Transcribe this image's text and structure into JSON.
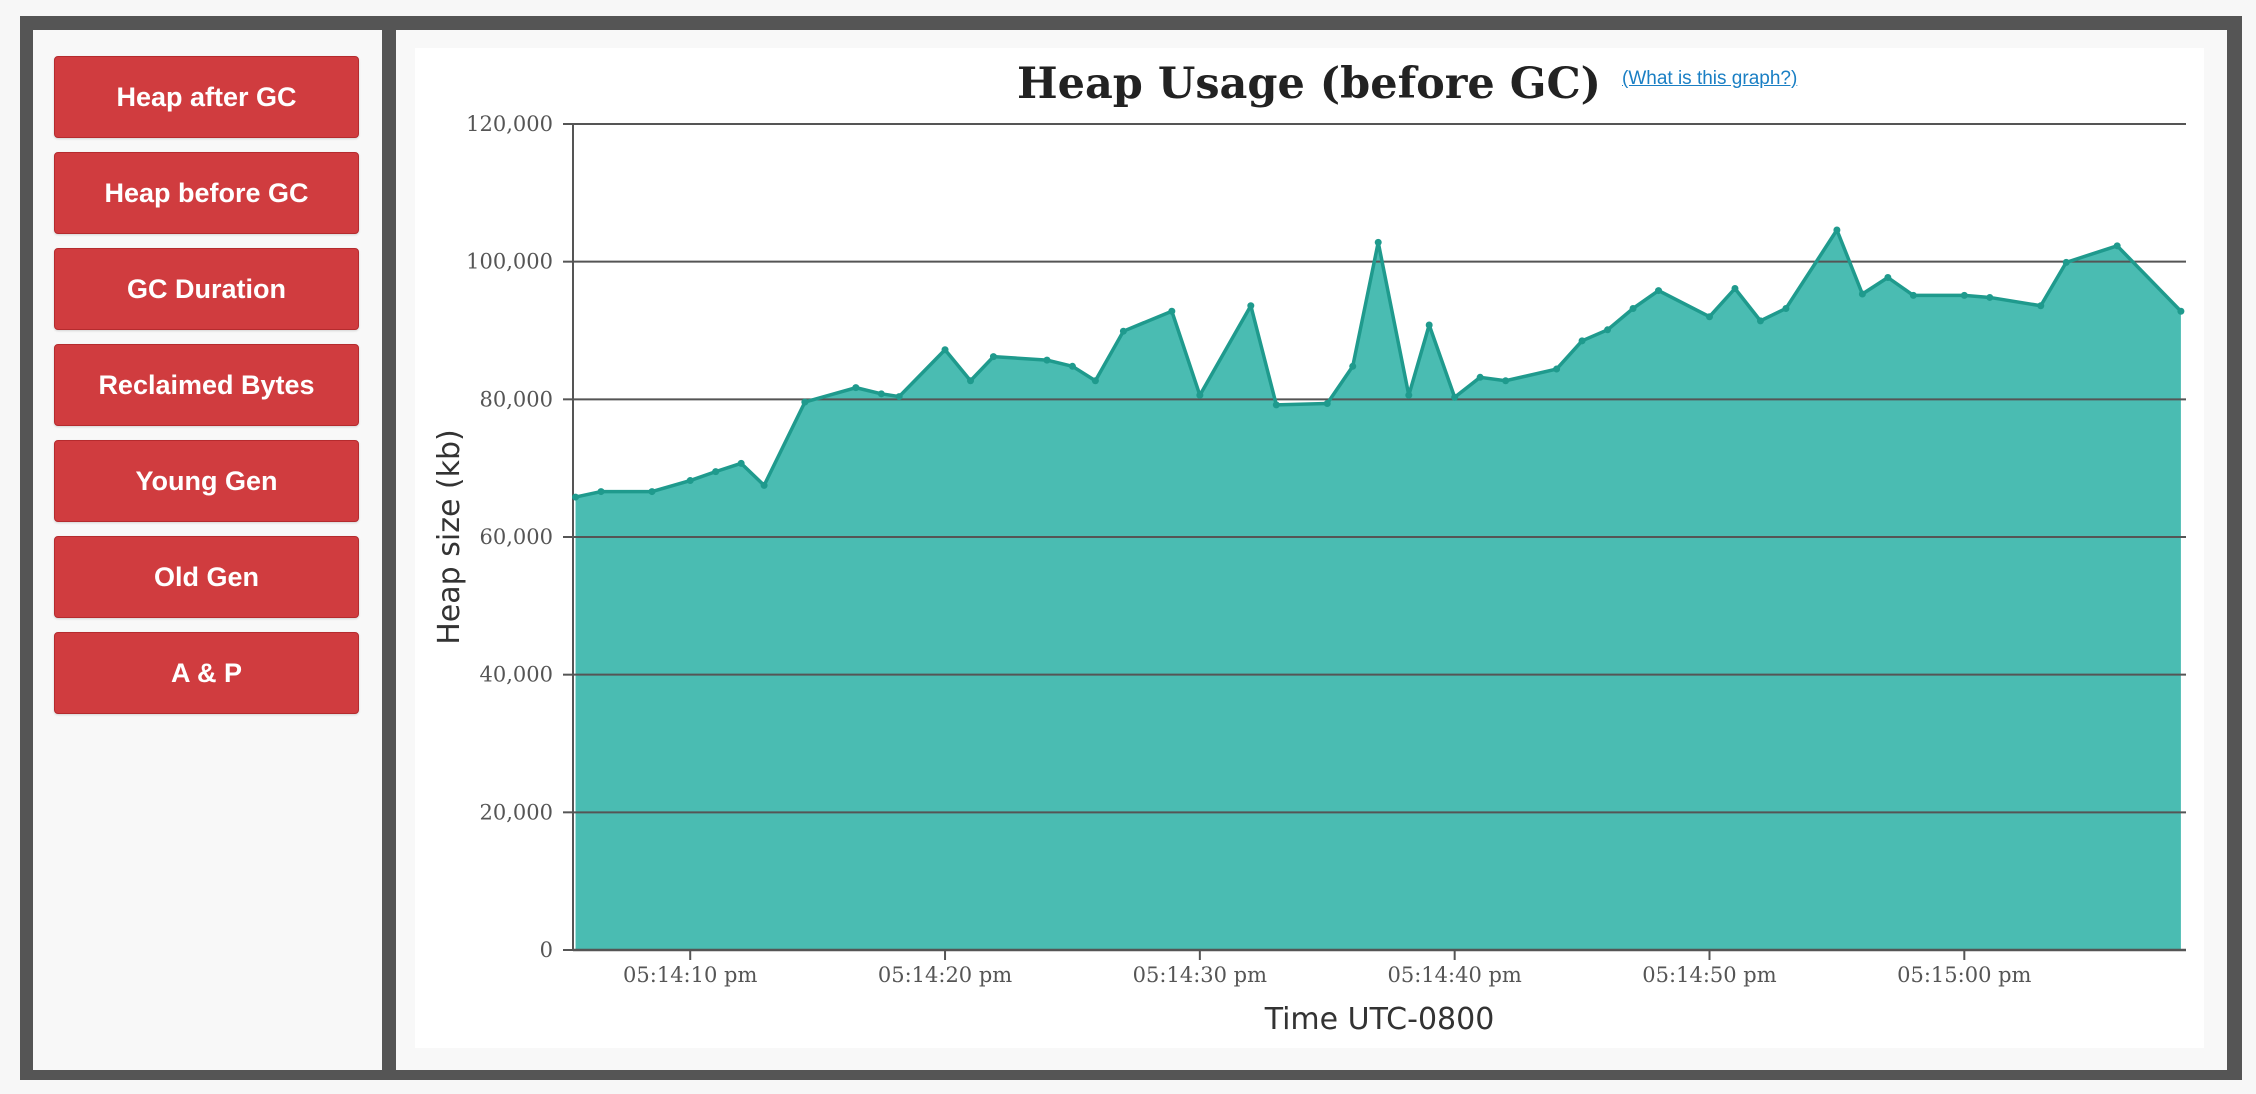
{
  "sidebar": {
    "buttons": [
      {
        "label": "Heap after GC"
      },
      {
        "label": "Heap before GC"
      },
      {
        "label": "GC Duration"
      },
      {
        "label": "Reclaimed Bytes"
      },
      {
        "label": "Young Gen"
      },
      {
        "label": "Old Gen"
      },
      {
        "label": "A & P"
      }
    ]
  },
  "chart": {
    "help_link": "(What is this graph?)"
  },
  "colors": {
    "button_bg": "#d03c3f",
    "area_fill": "#4abcb2",
    "line": "#1f9a8d",
    "grid": "#555555"
  },
  "chart_data": {
    "type": "area",
    "title": "Heap Usage (before GC)",
    "xlabel": "Time UTC-0800",
    "ylabel": "Heap size (kb)",
    "ylim": [
      0,
      120000
    ],
    "yticks": [
      0,
      20000,
      40000,
      60000,
      80000,
      100000,
      120000
    ],
    "ytick_labels": [
      "0",
      "20,000",
      "40,000",
      "60,000",
      "80,000",
      "100,000",
      "120,000"
    ],
    "xlim": [
      5.4,
      68.7
    ],
    "xticks": [
      10,
      20,
      30,
      40,
      50,
      60
    ],
    "xtick_labels": [
      "05:14:10 pm",
      "05:14:20 pm",
      "05:14:30 pm",
      "05:14:40 pm",
      "05:14:50 pm",
      "05:15:00 pm"
    ],
    "grid": true,
    "x_unit": "seconds after 05:14:00 pm",
    "series": [
      {
        "points": [
          [
            5.5,
            65800
          ],
          [
            6.5,
            66600
          ],
          [
            8.5,
            66600
          ],
          [
            10.0,
            68200
          ],
          [
            11.0,
            69500
          ],
          [
            12.0,
            70700
          ],
          [
            12.9,
            67500
          ],
          [
            14.5,
            79600
          ],
          [
            16.5,
            81700
          ],
          [
            17.5,
            80800
          ],
          [
            18.2,
            80400
          ],
          [
            20.0,
            87200
          ],
          [
            21.0,
            82700
          ],
          [
            21.9,
            86200
          ],
          [
            24.0,
            85700
          ],
          [
            25.0,
            84800
          ],
          [
            25.9,
            82700
          ],
          [
            27.0,
            89900
          ],
          [
            28.9,
            92800
          ],
          [
            30.0,
            80600
          ],
          [
            32.0,
            93600
          ],
          [
            33.0,
            79200
          ],
          [
            35.0,
            79400
          ],
          [
            36.0,
            84800
          ],
          [
            37.0,
            102800
          ],
          [
            38.2,
            80600
          ],
          [
            39.0,
            90800
          ],
          [
            40.0,
            80300
          ],
          [
            41.0,
            83200
          ],
          [
            42.0,
            82700
          ],
          [
            44.0,
            84400
          ],
          [
            45.0,
            88500
          ],
          [
            46.0,
            90100
          ],
          [
            47.0,
            93200
          ],
          [
            48.0,
            95800
          ],
          [
            50.0,
            92000
          ],
          [
            51.0,
            96100
          ],
          [
            52.0,
            91400
          ],
          [
            53.0,
            93200
          ],
          [
            55.0,
            104600
          ],
          [
            56.0,
            95300
          ],
          [
            57.0,
            97700
          ],
          [
            58.0,
            95100
          ],
          [
            60.0,
            95100
          ],
          [
            61.0,
            94800
          ],
          [
            63.0,
            93600
          ],
          [
            64.0,
            99900
          ],
          [
            66.0,
            102300
          ],
          [
            68.5,
            92800
          ]
        ]
      }
    ]
  }
}
